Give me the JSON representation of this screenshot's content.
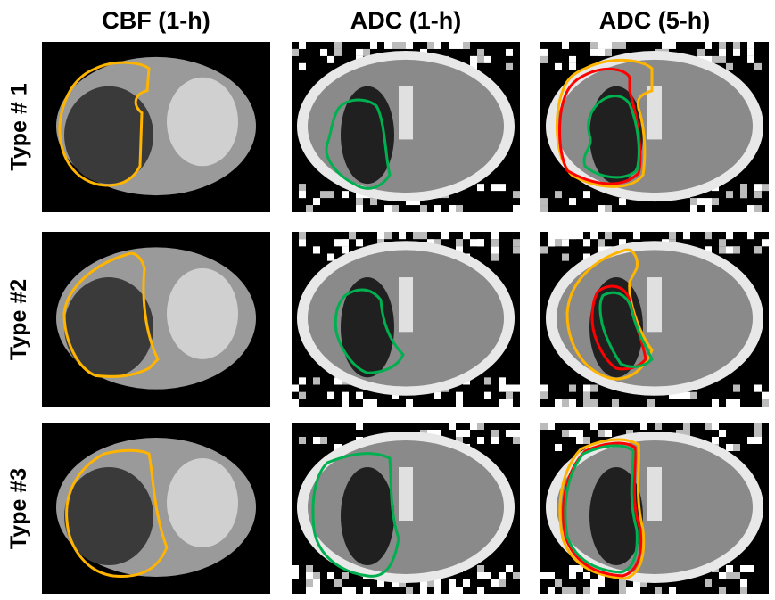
{
  "columns": [
    {
      "label": "CBF (1-h)"
    },
    {
      "label": "ADC (1-h)"
    },
    {
      "label": "ADC (5-h)"
    }
  ],
  "rows": [
    {
      "label": "Type # 1"
    },
    {
      "label": "Type #2"
    },
    {
      "label": "Type #3"
    }
  ],
  "contour_colors": {
    "orange": "#FFB400",
    "green": "#00B050",
    "red": "#FF0000"
  },
  "panels": [
    {
      "row": 0,
      "col": 0,
      "modality": "CBF",
      "contours": [
        "orange"
      ]
    },
    {
      "row": 0,
      "col": 1,
      "modality": "ADC",
      "contours": [
        "green"
      ]
    },
    {
      "row": 0,
      "col": 2,
      "modality": "ADC",
      "contours": [
        "orange",
        "red",
        "green"
      ]
    },
    {
      "row": 1,
      "col": 0,
      "modality": "CBF",
      "contours": [
        "orange"
      ]
    },
    {
      "row": 1,
      "col": 1,
      "modality": "ADC",
      "contours": [
        "green"
      ]
    },
    {
      "row": 1,
      "col": 2,
      "modality": "ADC",
      "contours": [
        "orange",
        "red",
        "green"
      ]
    },
    {
      "row": 2,
      "col": 0,
      "modality": "CBF",
      "contours": [
        "orange"
      ]
    },
    {
      "row": 2,
      "col": 1,
      "modality": "ADC",
      "contours": [
        "green"
      ]
    },
    {
      "row": 2,
      "col": 2,
      "modality": "ADC",
      "contours": [
        "orange",
        "red",
        "green"
      ]
    }
  ]
}
